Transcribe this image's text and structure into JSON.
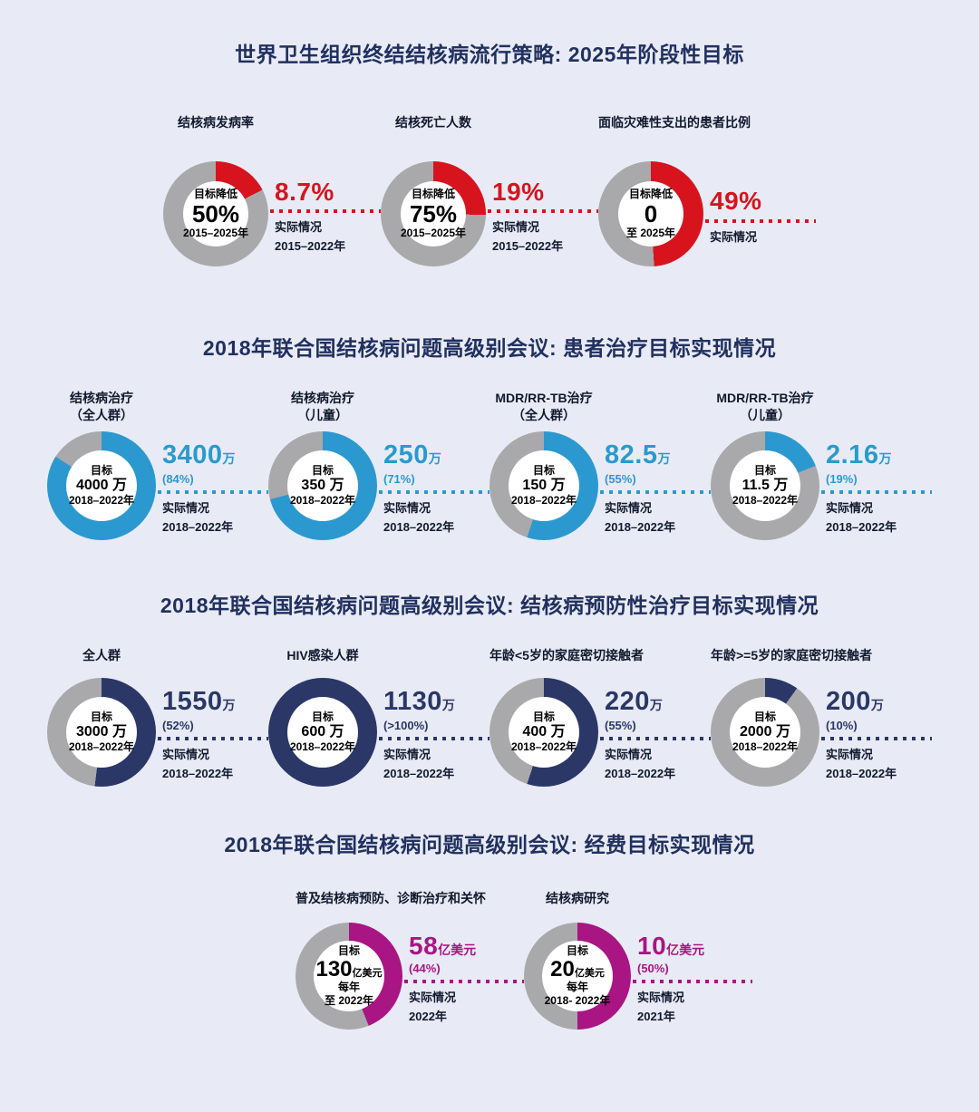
{
  "page": {
    "background": "#E8EBF5",
    "title_color": "#21305F",
    "text_dark": "#10192E",
    "ring_gray": "#A9A9AB"
  },
  "chart_data": [
    {
      "type": "pie",
      "title": "世界卫生组织终结结核病流行策略: 2025年阶段性目标",
      "accent": "#D7141E",
      "charts": [
        {
          "label": "结核病发病率",
          "sublabel": "",
          "target": {
            "top": "目标降低",
            "main": "50%",
            "unit": "",
            "rest": [
              "2015–2025年"
            ]
          },
          "actual": {
            "value": "8.7%",
            "unit": "",
            "note": "",
            "caption": "实际情况",
            "date": "2015–2022年"
          },
          "arc_percent": 17.4
        },
        {
          "label": "结核死亡人数",
          "sublabel": "",
          "target": {
            "top": "目标降低",
            "main": "75%",
            "unit": "",
            "rest": [
              "2015–2025年"
            ]
          },
          "actual": {
            "value": "19%",
            "unit": "",
            "note": "",
            "caption": "实际情况",
            "date": "2015–2022年"
          },
          "arc_percent": 25.3
        },
        {
          "label": "面临灾难性支出的患者比例",
          "sublabel": "",
          "target": {
            "top": "目标降低",
            "main": "0",
            "unit": "",
            "rest": [
              "至 2025年"
            ]
          },
          "actual": {
            "value": "49%",
            "unit": "",
            "note": "",
            "caption": "实际情况",
            "date": ""
          },
          "arc_percent": 49
        }
      ]
    },
    {
      "type": "pie",
      "title": "2018年联合国结核病问题高级别会议: 患者治疗目标实现情况",
      "accent": "#2B99CF",
      "charts": [
        {
          "label": "结核病治疗",
          "sublabel": "（全人群）",
          "target": {
            "top": "目标",
            "main": "4000 万",
            "unit": "",
            "rest": [
              "2018–2022年"
            ]
          },
          "actual": {
            "value": "3400",
            "unit": "万",
            "note": "(84%)",
            "caption": "实际情况",
            "date": "2018–2022年"
          },
          "arc_percent": 84
        },
        {
          "label": "结核病治疗",
          "sublabel": "（儿童）",
          "target": {
            "top": "目标",
            "main": "350 万",
            "unit": "",
            "rest": [
              "2018–2022年"
            ]
          },
          "actual": {
            "value": "250",
            "unit": "万",
            "note": "(71%)",
            "caption": "实际情况",
            "date": "2018–2022年"
          },
          "arc_percent": 71
        },
        {
          "label": "MDR/RR-TB治疗",
          "sublabel": "（全人群）",
          "target": {
            "top": "目标",
            "main": "150 万",
            "unit": "",
            "rest": [
              "2018–2022年"
            ]
          },
          "actual": {
            "value": "82.5",
            "unit": "万",
            "note": "(55%)",
            "caption": "实际情况",
            "date": "2018–2022年"
          },
          "arc_percent": 55
        },
        {
          "label": "MDR/RR-TB治疗",
          "sublabel": "（儿童）",
          "target": {
            "top": "目标",
            "main": "11.5 万",
            "unit": "",
            "rest": [
              "2018–2022年"
            ]
          },
          "actual": {
            "value": "2.16",
            "unit": "万",
            "note": "(19%)",
            "caption": "实际情况",
            "date": "2018–2022年"
          },
          "arc_percent": 19
        }
      ]
    },
    {
      "type": "pie",
      "title": "2018年联合国结核病问题高级别会议: 结核病预防性治疗目标实现情况",
      "accent": "#2A3767",
      "charts": [
        {
          "label": "全人群",
          "sublabel": "",
          "target": {
            "top": "目标",
            "main": "3000 万",
            "unit": "",
            "rest": [
              "2018–2022年"
            ]
          },
          "actual": {
            "value": "1550",
            "unit": "万",
            "note": "(52%)",
            "caption": "实际情况",
            "date": "2018–2022年"
          },
          "arc_percent": 52
        },
        {
          "label": "HIV感染人群",
          "sublabel": "",
          "target": {
            "top": "目标",
            "main": "600 万",
            "unit": "",
            "rest": [
              "2018–2022年"
            ]
          },
          "actual": {
            "value": "1130",
            "unit": "万",
            "note": "(>100%)",
            "caption": "实际情况",
            "date": "2018–2022年"
          },
          "arc_percent": 100
        },
        {
          "label": "年龄<5岁的家庭密切接触者",
          "sublabel": "",
          "target": {
            "top": "目标",
            "main": "400 万",
            "unit": "",
            "rest": [
              "2018–2022年"
            ]
          },
          "actual": {
            "value": "220",
            "unit": "万",
            "note": "(55%)",
            "caption": "实际情况",
            "date": "2018–2022年"
          },
          "arc_percent": 55
        },
        {
          "label": "年龄>=5岁的家庭密切接触者",
          "sublabel": "",
          "target": {
            "top": "目标",
            "main": "2000 万",
            "unit": "",
            "rest": [
              "2018–2022年"
            ]
          },
          "actual": {
            "value": "200",
            "unit": "万",
            "note": "(10%)",
            "caption": "实际情况",
            "date": "2018–2022年"
          },
          "arc_percent": 10
        }
      ]
    },
    {
      "type": "pie",
      "title": "2018年联合国结核病问题高级别会议: 经费目标实现情况",
      "accent": "#A91583",
      "charts": [
        {
          "label": "普及结核病预防、诊断治疗和关怀",
          "sublabel": "",
          "target": {
            "top": "目标",
            "main": "130",
            "unit": "亿美元",
            "rest": [
              "每年",
              "至 2022年"
            ]
          },
          "actual": {
            "value": "58",
            "unit": "亿美元",
            "note": "(44%)",
            "caption": "实际情况",
            "date": "2022年"
          },
          "arc_percent": 44
        },
        {
          "label": "结核病研究",
          "sublabel": "",
          "target": {
            "top": "目标",
            "main": "20",
            "unit": "亿美元",
            "rest": [
              "每年",
              "2018- 2022年"
            ]
          },
          "actual": {
            "value": "10",
            "unit": "亿美元",
            "note": "(50%)",
            "caption": "实际情况",
            "date": "2021年"
          },
          "arc_percent": 50
        }
      ]
    }
  ]
}
